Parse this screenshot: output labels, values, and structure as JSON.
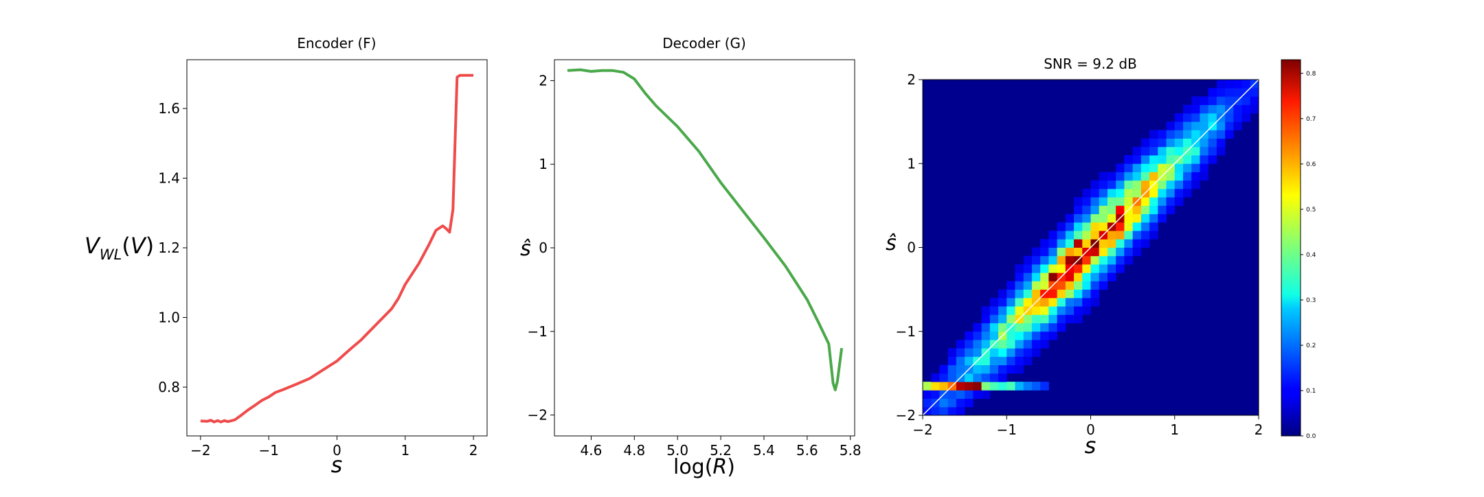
{
  "chart_data": [
    {
      "type": "line",
      "title": "Encoder (F)",
      "xlabel": "s",
      "ylabel": "V_WL(V)",
      "xlim": [
        -2.2,
        2.2
      ],
      "ylim": [
        0.66,
        1.74
      ],
      "xticks": [
        -2,
        -1,
        0,
        1,
        2
      ],
      "xtick_labels": [
        "−2",
        "−1",
        "0",
        "1",
        "2"
      ],
      "yticks": [
        0.8,
        1.0,
        1.2,
        1.4,
        1.6
      ],
      "ytick_labels": [
        "0.8",
        "1.0",
        "1.2",
        "1.4",
        "1.6"
      ],
      "color": "#ef4b4b",
      "grid": false,
      "x": [
        -2.0,
        -1.9,
        -1.85,
        -1.8,
        -1.75,
        -1.7,
        -1.65,
        -1.6,
        -1.5,
        -1.4,
        -1.3,
        -1.2,
        -1.1,
        -1.0,
        -0.9,
        -0.8,
        -0.6,
        -0.4,
        -0.2,
        0.0,
        0.2,
        0.35,
        0.45,
        0.6,
        0.8,
        0.9,
        1.0,
        1.2,
        1.35,
        1.45,
        1.55,
        1.6,
        1.65,
        1.7,
        1.73,
        1.76,
        1.8,
        1.9,
        2.0
      ],
      "y": [
        0.703,
        0.702,
        0.705,
        0.7,
        0.704,
        0.7,
        0.704,
        0.701,
        0.706,
        0.72,
        0.735,
        0.748,
        0.762,
        0.772,
        0.785,
        0.792,
        0.808,
        0.825,
        0.85,
        0.875,
        0.91,
        0.935,
        0.955,
        0.985,
        1.025,
        1.055,
        1.095,
        1.155,
        1.21,
        1.25,
        1.263,
        1.255,
        1.245,
        1.31,
        1.5,
        1.69,
        1.695,
        1.695,
        1.695
      ]
    },
    {
      "type": "line",
      "title": "Decoder (G)",
      "xlabel": "log(R)",
      "ylabel": "ŝ",
      "xlim": [
        4.43,
        5.82
      ],
      "ylim": [
        -2.25,
        2.25
      ],
      "xticks": [
        4.6,
        4.8,
        5.0,
        5.2,
        5.4,
        5.6,
        5.8
      ],
      "xtick_labels": [
        "4.6",
        "4.8",
        "5.0",
        "5.2",
        "5.4",
        "5.6",
        "5.8"
      ],
      "yticks": [
        -2,
        -1,
        0,
        1,
        2
      ],
      "ytick_labels": [
        "−2",
        "−1",
        "0",
        "1",
        "2"
      ],
      "color": "#4aa84a",
      "grid": false,
      "x": [
        4.49,
        4.55,
        4.6,
        4.65,
        4.7,
        4.75,
        4.8,
        4.85,
        4.9,
        5.0,
        5.1,
        5.2,
        5.3,
        5.4,
        5.5,
        5.6,
        5.65,
        5.7,
        5.72,
        5.73,
        5.74,
        5.76
      ],
      "y": [
        2.12,
        2.13,
        2.11,
        2.12,
        2.12,
        2.1,
        2.02,
        1.85,
        1.7,
        1.45,
        1.15,
        0.78,
        0.45,
        0.12,
        -0.22,
        -0.62,
        -0.88,
        -1.15,
        -1.62,
        -1.7,
        -1.6,
        -1.2
      ]
    },
    {
      "type": "heatmap",
      "title": "SNR = 9.2 dB",
      "xlabel": "s",
      "ylabel": "ŝ",
      "xlim": [
        -2,
        2
      ],
      "ylim": [
        -2,
        2
      ],
      "xticks": [
        -2,
        -1,
        0,
        1,
        2
      ],
      "xtick_labels": [
        "−2",
        "−1",
        "0",
        "1",
        "2"
      ],
      "yticks": [
        -2,
        -1,
        0,
        1,
        2
      ],
      "ytick_labels": [
        "−2",
        "−1",
        "0",
        "1",
        "2"
      ],
      "bins": 40,
      "colormap": "jet",
      "background_color": "#00008f",
      "diagonal_line": "white",
      "colorbar": {
        "min": 0.0,
        "max": 0.83,
        "ticks": [
          0.0,
          0.1,
          0.2,
          0.3,
          0.4,
          0.5,
          0.6,
          0.7,
          0.8
        ],
        "tick_labels": [
          "0.0",
          "0.1",
          "0.2",
          "0.3",
          "0.4",
          "0.5",
          "0.6",
          "0.7",
          "0.8"
        ]
      },
      "saturated_row": {
        "y": -1.65,
        "x": [
          -1.95,
          -1.85,
          -1.75,
          -1.65,
          -1.55,
          -1.45,
          -1.35,
          -1.25,
          -1.15,
          -1.05,
          -0.95,
          -0.85,
          -0.75,
          -0.65,
          -0.55
        ],
        "values": [
          0.42,
          0.52,
          0.55,
          0.62,
          0.78,
          0.8,
          0.82,
          0.38,
          0.33,
          0.3,
          0.33,
          0.2,
          0.15,
          0.12,
          0.08
        ]
      },
      "peak_cells": [
        {
          "x": -0.45,
          "y": -0.35,
          "v": 0.82
        },
        {
          "x": -0.25,
          "y": -0.15,
          "v": 0.8
        },
        {
          "x": -0.15,
          "y": 0.05,
          "v": 0.78
        },
        {
          "x": 0.15,
          "y": 0.15,
          "v": 0.75
        },
        {
          "x": 0.35,
          "y": 0.45,
          "v": 0.72
        },
        {
          "x": -0.55,
          "y": -0.55,
          "v": 0.7
        },
        {
          "x": 0.05,
          "y": -0.05,
          "v": 0.76
        }
      ]
    }
  ]
}
